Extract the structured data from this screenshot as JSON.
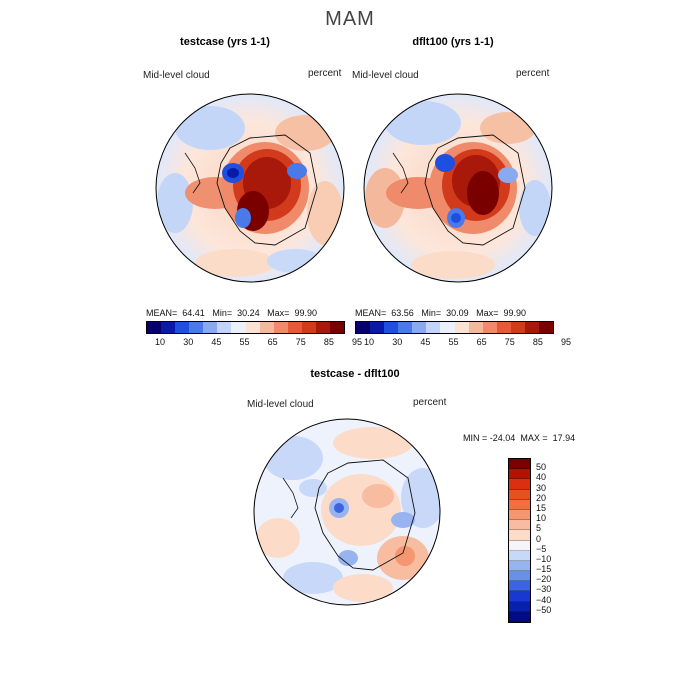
{
  "title": "MAM",
  "panels": [
    {
      "title": "testcase (yrs 1-1)",
      "variable": "Mid-level cloud",
      "units": "percent",
      "stats": {
        "mean_label": "MEAN=",
        "mean": "64.41",
        "min_label": "Min=",
        "min": "30.24",
        "max_label": "Max=",
        "max": "99.90"
      }
    },
    {
      "title": "dflt100 (yrs 1-1)",
      "variable": "Mid-level cloud",
      "units": "percent",
      "stats": {
        "mean_label": "MEAN=",
        "mean": "63.56",
        "min_label": "Min=",
        "min": "30.09",
        "max_label": "Max=",
        "max": "99.90"
      }
    }
  ],
  "field_colorbar": {
    "ticks": [
      "10",
      "30",
      "45",
      "55",
      "65",
      "75",
      "85",
      "95"
    ],
    "colors": [
      "#08006a",
      "#0a1aa8",
      "#1d4fe0",
      "#4a7ae8",
      "#8aaaf0",
      "#c2d4f8",
      "#ecf0fb",
      "#fbe2d2",
      "#f6b89c",
      "#ef8a6a",
      "#e6593a",
      "#d23a1c",
      "#a8190c",
      "#7a0000"
    ]
  },
  "diff_panel": {
    "title": "testcase - dflt100",
    "variable": "Mid-level cloud",
    "units": "percent",
    "min_label": "MIN =",
    "min": "-24.04",
    "max_label": "MAX =",
    "max": "17.94"
  },
  "diff_colorbar": {
    "labels": [
      "50",
      "40",
      "30",
      "20",
      "15",
      "10",
      "5",
      "0",
      "−5",
      "−10",
      "−15",
      "−20",
      "−30",
      "−40",
      "−50"
    ],
    "colors": [
      "#7a0000",
      "#b01400",
      "#d83010",
      "#e8501e",
      "#f07040",
      "#f49670",
      "#f8bca0",
      "#fcdcc8",
      "#f4f4fa",
      "#c8d8f8",
      "#98b4f0",
      "#6890ea",
      "#3c64e0",
      "#1838d0",
      "#0820b0",
      "#000c80"
    ]
  }
}
